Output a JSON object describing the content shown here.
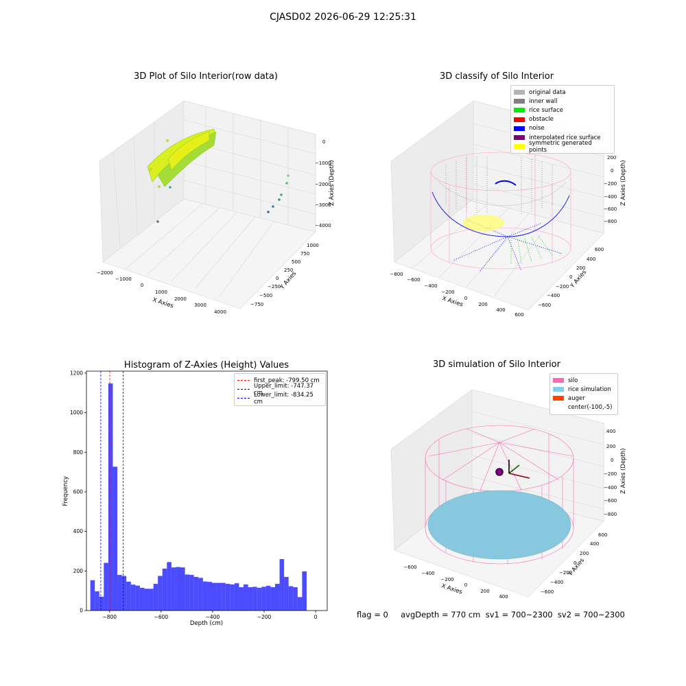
{
  "suptitle": "CJASD02 2026-06-29 12:25:31",
  "footer": "flag = 0     avgDepth = 770 cm  sv1 = 700~2300  sv2 = 700~2300",
  "panels": {
    "raw": {
      "title": "3D Plot of Silo Interior(row data)",
      "xlabel": "X Axies",
      "ylabel": "Y Axies",
      "zlabel": "Z Axies (Depth)",
      "xticks": [
        "−2000",
        "−1000",
        "0",
        "1000",
        "2000",
        "3000",
        "4000"
      ],
      "yticks": [
        "1000",
        "750",
        "500",
        "250",
        "0",
        "−250",
        "−500",
        "−750"
      ],
      "zticks": [
        "0",
        "−1000",
        "−2000",
        "−3000",
        "−4000"
      ]
    },
    "classify": {
      "title": "3D classify of Silo Interior",
      "xlabel": "X Axies",
      "ylabel": "Y Axies",
      "zlabel": "Z Axies (Depth)",
      "xticks": [
        "−800",
        "−600",
        "−400",
        "−200",
        "0",
        "200",
        "400",
        "600"
      ],
      "yticks": [
        "600",
        "400",
        "200",
        "0",
        "−200",
        "−400",
        "−600"
      ],
      "zticks": [
        "200",
        "0",
        "−200",
        "−400",
        "−600",
        "−800"
      ],
      "legend": [
        {
          "label": "original data",
          "color": "#b4b4b4"
        },
        {
          "label": "inner wall",
          "color": "#808080"
        },
        {
          "label": "rice surface",
          "color": "#00ee00"
        },
        {
          "label": "obstacle",
          "color": "#ff0000"
        },
        {
          "label": "noise",
          "color": "#0000ff"
        },
        {
          "label": "interpolated rice surface",
          "color": "#800080"
        },
        {
          "label": "symmetric generated points",
          "color": "#ffff00"
        }
      ]
    },
    "simulation": {
      "title": "3D simulation of Silo Interior",
      "xlabel": "X Axies",
      "ylabel": "Y Axies",
      "zlabel": "Z Axies (Depth)",
      "xticks": [
        "−600",
        "−400",
        "−200",
        "0",
        "200",
        "400"
      ],
      "yticks": [
        "600",
        "400",
        "200",
        "0",
        "−200",
        "−400",
        "−600"
      ],
      "zticks": [
        "400",
        "200",
        "0",
        "−200",
        "−400",
        "−600",
        "−800"
      ],
      "legend": [
        {
          "label": "silo",
          "color": "#ff69b4"
        },
        {
          "label": "rice simulation",
          "color": "#87ceeb"
        },
        {
          "label": "auger",
          "color": "#ff4500"
        },
        {
          "label": "center(-100,-5)",
          "color": "#ffffff"
        }
      ]
    }
  },
  "chart_data": [
    {
      "type": "bar",
      "title": "Histogram of Z-Axies (Height) Values",
      "xlabel": "Depth (cm)",
      "ylabel": "Frequency",
      "xlim": [
        -890,
        45
      ],
      "ylim": [
        0,
        1210
      ],
      "xticks": [
        -800,
        -600,
        -400,
        -200,
        0
      ],
      "xtick_labels": [
        "−800",
        "−600",
        "−400",
        "−200",
        "0"
      ],
      "yticks": [
        0,
        200,
        400,
        600,
        800,
        1000,
        1200
      ],
      "bar_color": "#0000ff",
      "bin_edges_start": -875,
      "bin_width": 17.5,
      "values": [
        153,
        97,
        70,
        241,
        1148,
        727,
        180,
        175,
        146,
        131,
        126,
        115,
        110,
        110,
        135,
        175,
        212,
        245,
        218,
        220,
        218,
        182,
        180,
        170,
        165,
        147,
        145,
        140,
        140,
        140,
        135,
        132,
        138,
        118,
        132,
        118,
        120,
        115,
        120,
        125,
        118,
        135,
        260,
        170,
        123,
        118,
        68,
        198
      ],
      "lines": [
        {
          "label": "first_peak: -799.50 cm",
          "value": -799.5,
          "color": "#ff0000"
        },
        {
          "label": "Upper_limit: -747.37 cm",
          "value": -747.37,
          "color": "#0000ff"
        },
        {
          "label": "Lower_limit: -834.25 cm",
          "value": -834.25,
          "color": "#0000ff"
        }
      ],
      "legend_position": "top-right"
    }
  ]
}
